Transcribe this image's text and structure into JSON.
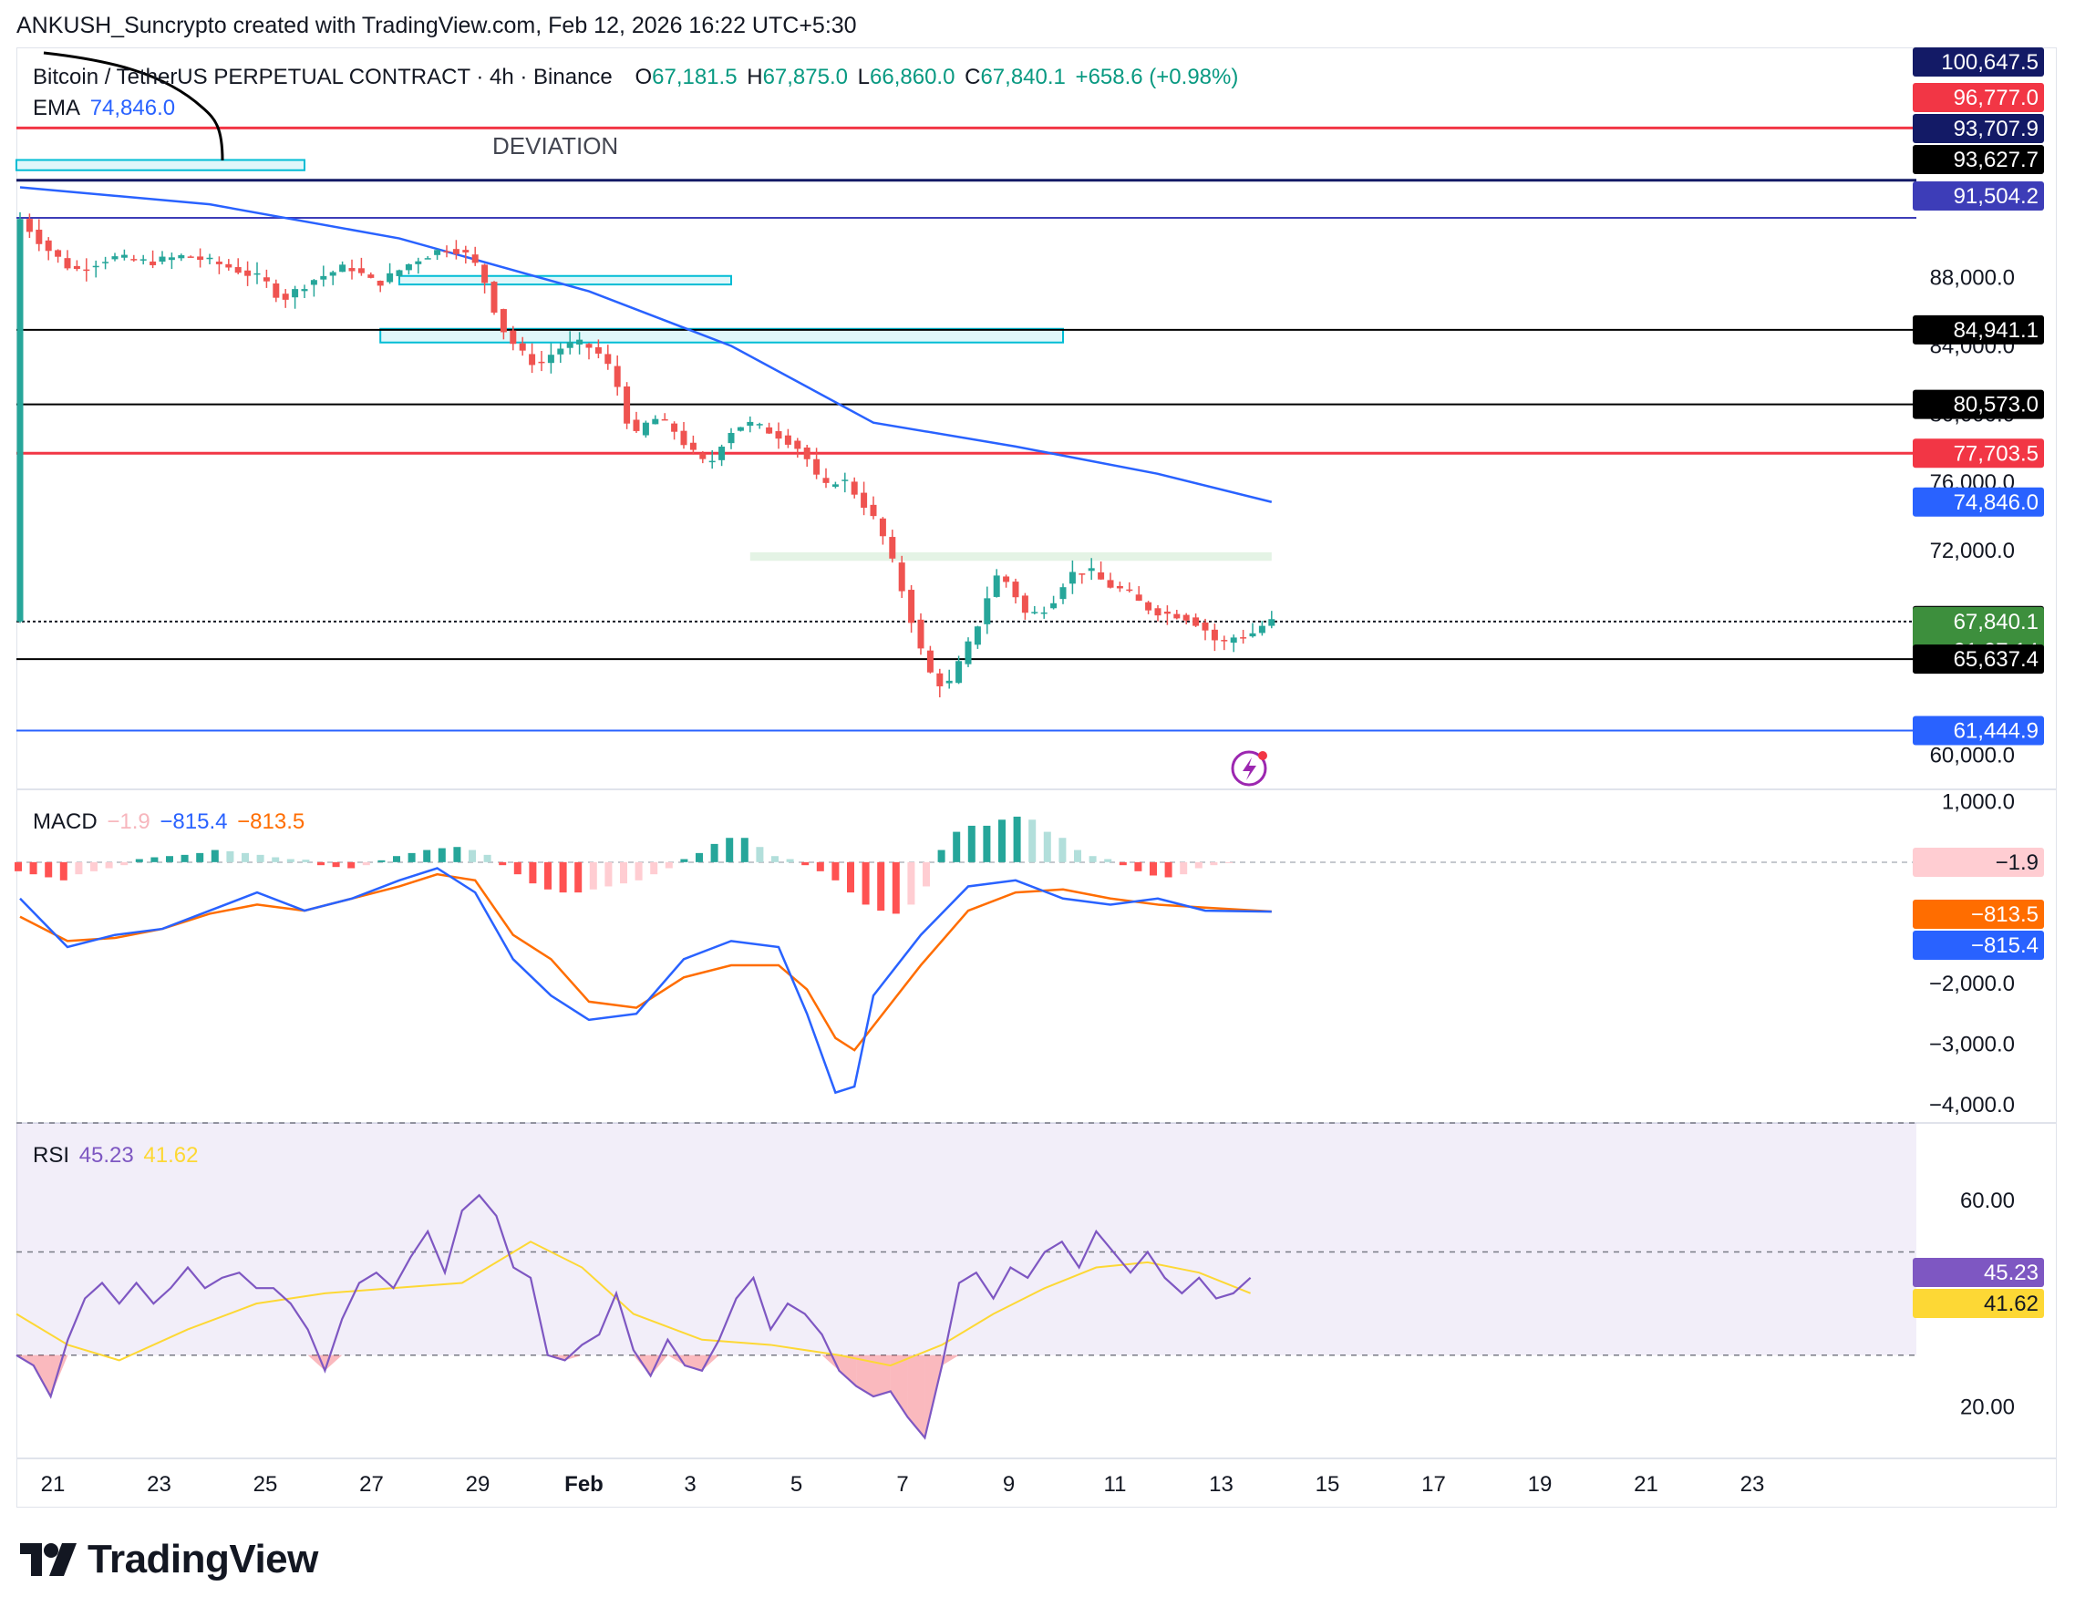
{
  "credit": "ANKUSH_Suncrypto created with TradingView.com, Feb 12, 2026 16:22 UTC+5:30",
  "symbol": {
    "name": "Bitcoin / TetherUS PERPETUAL CONTRACT · 4h · Binance",
    "o_label": "O",
    "o": "67,181.5",
    "h_label": "H",
    "h": "67,875.0",
    "l_label": "L",
    "l": "66,860.0",
    "c_label": "C",
    "c": "67,840.1",
    "change": "+658.6 (+0.98%)"
  },
  "ema": {
    "label": "EMA",
    "value": "74,846.0"
  },
  "annotation": "DEVIATION",
  "macd_legend": {
    "label": "MACD",
    "hist": "−1.9",
    "macd": "−815.4",
    "signal": "−813.5"
  },
  "rsi_legend": {
    "label": "RSI",
    "rsi": "45.23",
    "ma": "41.62"
  },
  "brand": "TradingView",
  "colors": {
    "up": "#26a69a",
    "down": "#ef5350",
    "ema": "#2962ff",
    "red_line": "#f23645",
    "navy": "#131a66",
    "purple": "#5b3bd1",
    "macd": "#2962ff",
    "signal": "#ff6d00",
    "rsi": "#7e57c2",
    "rsi_ma": "#fdd835",
    "zone": "#00bcd4"
  },
  "chart_data": [
    {
      "type": "candlestick",
      "title": "Bitcoin / TetherUS PERPETUAL CONTRACT · 4h · Binance",
      "ylim": [
        58000,
        101500
      ],
      "y_ticks": [
        "88,000.0",
        "84,000.0",
        "80,000.0",
        "76,000.0",
        "72,000.0",
        "60,000.0"
      ],
      "y_tick_values": [
        88000,
        84000,
        80000,
        76000,
        72000,
        60000
      ],
      "x_labels": [
        "21",
        "23",
        "25",
        "27",
        "29",
        "Feb",
        "3",
        "5",
        "7",
        "9",
        "11",
        "13",
        "15",
        "17",
        "19",
        "21",
        "23"
      ],
      "price_path": [
        [
          0,
          91700
        ],
        [
          3,
          89800
        ],
        [
          6,
          88400
        ],
        [
          10,
          89200
        ],
        [
          14,
          88900
        ],
        [
          18,
          89300
        ],
        [
          22,
          88700
        ],
        [
          26,
          87900
        ],
        [
          28,
          86700
        ],
        [
          31,
          87800
        ],
        [
          35,
          88700
        ],
        [
          38,
          87600
        ],
        [
          42,
          89000
        ],
        [
          45,
          89700
        ],
        [
          47,
          89600
        ],
        [
          49,
          88400
        ],
        [
          51,
          85200
        ],
        [
          53,
          83700
        ],
        [
          55,
          82800
        ],
        [
          57,
          83800
        ],
        [
          59,
          84200
        ],
        [
          61,
          83800
        ],
        [
          63,
          82400
        ],
        [
          65,
          78500
        ],
        [
          67,
          79800
        ],
        [
          69,
          79300
        ],
        [
          71,
          77900
        ],
        [
          73,
          76900
        ],
        [
          75,
          78900
        ],
        [
          77,
          79500
        ],
        [
          79,
          79100
        ],
        [
          81,
          78600
        ],
        [
          83,
          77800
        ],
        [
          85,
          75600
        ],
        [
          87,
          76300
        ],
        [
          89,
          75000
        ],
        [
          91,
          73400
        ],
        [
          93,
          70400
        ],
        [
          95,
          66900
        ],
        [
          96,
          65000
        ],
        [
          97,
          64500
        ],
        [
          98,
          63800
        ],
        [
          100,
          66000
        ],
        [
          102,
          68400
        ],
        [
          103,
          70600
        ],
        [
          105,
          70000
        ],
        [
          106,
          68400
        ],
        [
          107,
          68200
        ],
        [
          109,
          68800
        ],
        [
          111,
          70600
        ],
        [
          113,
          70900
        ],
        [
          115,
          70000
        ],
        [
          117,
          69600
        ],
        [
          119,
          68700
        ],
        [
          121,
          68300
        ],
        [
          123,
          68200
        ],
        [
          125,
          67600
        ],
        [
          127,
          66400
        ],
        [
          128,
          66900
        ],
        [
          130,
          67000
        ],
        [
          132,
          67840
        ]
      ],
      "ema": {
        "label": "EMA",
        "value": 74846,
        "path": [
          [
            0,
            93300
          ],
          [
            20,
            92300
          ],
          [
            40,
            90300
          ],
          [
            60,
            87200
          ],
          [
            75,
            84000
          ],
          [
            90,
            79500
          ],
          [
            105,
            78100
          ],
          [
            120,
            76500
          ],
          [
            132,
            74846
          ]
        ]
      },
      "levels": [
        {
          "name": "level-100647",
          "value": 100647.5,
          "label": "100,647.5",
          "line": false,
          "badge": "#131a66",
          "fg": "#ffffff"
        },
        {
          "name": "level-96777",
          "value": 96777.0,
          "label": "96,777.0",
          "line": true,
          "color": "#f23645",
          "badge": "#f23645",
          "fg": "#ffffff"
        },
        {
          "name": "level-93707",
          "value": 93707.9,
          "label": "93,707.9",
          "line": true,
          "color": "#131a66",
          "badge": "#131a66",
          "fg": "#ffffff"
        },
        {
          "name": "level-93627",
          "value": 93627.7,
          "label": "93,627.7",
          "line": false,
          "badge": "#000000",
          "fg": "#ffffff"
        },
        {
          "name": "level-91504",
          "value": 91504.2,
          "label": "91,504.2",
          "line": true,
          "color": "#3d3db8",
          "badge": "#3d3db8",
          "fg": "#ffffff"
        },
        {
          "name": "level-84941",
          "value": 84941.1,
          "label": "84,941.1",
          "line": true,
          "color": "#000000",
          "badge": "#000000",
          "fg": "#ffffff"
        },
        {
          "name": "level-80573",
          "value": 80573.0,
          "label": "80,573.0",
          "line": true,
          "color": "#000000",
          "badge": "#000000",
          "fg": "#ffffff"
        },
        {
          "name": "level-77703",
          "value": 77703.5,
          "label": "77,703.5",
          "line": true,
          "color": "#f23645",
          "badge": "#f23645",
          "fg": "#ffffff"
        },
        {
          "name": "level-74846",
          "value": 74846.0,
          "label": "74,846.0",
          "line": false,
          "badge": "#2962ff",
          "fg": "#ffffff"
        },
        {
          "name": "level-67897",
          "value": 67897.6,
          "label": "67,897.6",
          "line": false,
          "badge": "#000000",
          "fg": "#ffffff"
        },
        {
          "name": "level-67840",
          "value": 67840.1,
          "label": "67,840.1",
          "line": true,
          "dashed": true,
          "color": "#131722",
          "badge": "#3d8f3d",
          "fg": "#ffffff",
          "sub": "01:07:14"
        },
        {
          "name": "level-65637",
          "value": 65637.4,
          "label": "65,637.4",
          "line": true,
          "color": "#000000",
          "badge": "#000000",
          "fg": "#ffffff"
        },
        {
          "name": "level-61444",
          "value": 61444.9,
          "label": "61,444.9",
          "line": true,
          "color": "#2962ff",
          "badge": "#2962ff",
          "fg": "#ffffff"
        }
      ],
      "zones": [
        {
          "name": "zone-top",
          "x0": -5,
          "x1": 30,
          "y0": 94300,
          "y1": 94900,
          "color": "#00bcd4"
        },
        {
          "name": "zone-mid",
          "x0": 40,
          "x1": 75,
          "y0": 87600,
          "y1": 88100,
          "color": "#00bcd4"
        },
        {
          "name": "zone-wide",
          "x0": 38,
          "x1": 110,
          "y0": 84200,
          "y1": 85000,
          "color": "#00bcd4"
        },
        {
          "name": "zone-green",
          "x0": 77,
          "x1": 132,
          "y0": 71400,
          "y1": 71900,
          "color": "#4caf50"
        }
      ]
    },
    {
      "type": "macd",
      "ylim": [
        -4300,
        1200
      ],
      "y_ticks": [
        "1,000.0",
        "−2,000.0",
        "−3,000.0",
        "−4,000.0"
      ],
      "y_tick_values": [
        1000,
        -2000,
        -3000,
        -4000
      ],
      "macd_path": [
        [
          0,
          -600
        ],
        [
          5,
          -1400
        ],
        [
          10,
          -1200
        ],
        [
          15,
          -1100
        ],
        [
          20,
          -800
        ],
        [
          25,
          -500
        ],
        [
          30,
          -800
        ],
        [
          35,
          -600
        ],
        [
          40,
          -300
        ],
        [
          44,
          -100
        ],
        [
          48,
          -500
        ],
        [
          52,
          -1600
        ],
        [
          56,
          -2200
        ],
        [
          60,
          -2600
        ],
        [
          65,
          -2500
        ],
        [
          70,
          -1600
        ],
        [
          75,
          -1300
        ],
        [
          80,
          -1400
        ],
        [
          83,
          -2500
        ],
        [
          86,
          -3800
        ],
        [
          88,
          -3700
        ],
        [
          90,
          -2200
        ],
        [
          95,
          -1200
        ],
        [
          100,
          -400
        ],
        [
          105,
          -300
        ],
        [
          110,
          -600
        ],
        [
          115,
          -700
        ],
        [
          120,
          -600
        ],
        [
          125,
          -800
        ],
        [
          132,
          -815
        ]
      ],
      "signal_path": [
        [
          0,
          -900
        ],
        [
          5,
          -1300
        ],
        [
          10,
          -1250
        ],
        [
          15,
          -1100
        ],
        [
          20,
          -850
        ],
        [
          25,
          -700
        ],
        [
          30,
          -800
        ],
        [
          35,
          -600
        ],
        [
          40,
          -400
        ],
        [
          44,
          -200
        ],
        [
          48,
          -300
        ],
        [
          52,
          -1200
        ],
        [
          56,
          -1600
        ],
        [
          60,
          -2300
        ],
        [
          65,
          -2400
        ],
        [
          70,
          -1900
        ],
        [
          75,
          -1700
        ],
        [
          80,
          -1700
        ],
        [
          83,
          -2100
        ],
        [
          86,
          -2900
        ],
        [
          88,
          -3100
        ],
        [
          90,
          -2700
        ],
        [
          95,
          -1700
        ],
        [
          100,
          -800
        ],
        [
          105,
          -500
        ],
        [
          110,
          -450
        ],
        [
          115,
          -600
        ],
        [
          120,
          -700
        ],
        [
          125,
          -750
        ],
        [
          132,
          -813
        ]
      ],
      "histogram": [
        -150,
        -200,
        -250,
        -300,
        -200,
        -150,
        -100,
        -50,
        50,
        80,
        100,
        120,
        150,
        200,
        180,
        150,
        120,
        80,
        50,
        40,
        -50,
        -80,
        -100,
        -50,
        30,
        100,
        150,
        200,
        230,
        250,
        200,
        120,
        -50,
        -200,
        -350,
        -450,
        -500,
        -500,
        -450,
        -400,
        -350,
        -300,
        -200,
        -100,
        50,
        150,
        300,
        400,
        400,
        250,
        100,
        50,
        -50,
        -150,
        -300,
        -500,
        -700,
        -800,
        -850,
        -700,
        -400,
        200,
        500,
        600,
        600,
        700,
        750,
        700,
        500,
        400,
        200,
        100,
        50,
        -50,
        -150,
        -220,
        -250,
        -200,
        -100,
        -50,
        -2
      ],
      "zero_line": -1.9
    },
    {
      "type": "rsi",
      "ylim": [
        10,
        75
      ],
      "y_ticks": [
        "60.00",
        "20.00"
      ],
      "y_tick_values": [
        60,
        20
      ],
      "band": [
        30,
        70
      ],
      "midline": 50,
      "rsi_path": [
        [
          0,
          30
        ],
        [
          1,
          28
        ],
        [
          2,
          22
        ],
        [
          3,
          33
        ],
        [
          4,
          41
        ],
        [
          5,
          44
        ],
        [
          6,
          40
        ],
        [
          7,
          44
        ],
        [
          8,
          40
        ],
        [
          9,
          43
        ],
        [
          10,
          47
        ],
        [
          11,
          43
        ],
        [
          12,
          45
        ],
        [
          13,
          46
        ],
        [
          14,
          43
        ],
        [
          15,
          43
        ],
        [
          16,
          40
        ],
        [
          17,
          35
        ],
        [
          18,
          27
        ],
        [
          19,
          37
        ],
        [
          20,
          44
        ],
        [
          21,
          46
        ],
        [
          22,
          43
        ],
        [
          23,
          49
        ],
        [
          24,
          54
        ],
        [
          25,
          46
        ],
        [
          26,
          58
        ],
        [
          27,
          61
        ],
        [
          28,
          57
        ],
        [
          29,
          47
        ],
        [
          30,
          45
        ],
        [
          31,
          30
        ],
        [
          32,
          29
        ],
        [
          33,
          32
        ],
        [
          34,
          34
        ],
        [
          35,
          42
        ],
        [
          36,
          31
        ],
        [
          37,
          26
        ],
        [
          38,
          33
        ],
        [
          39,
          28
        ],
        [
          40,
          27
        ],
        [
          41,
          33
        ],
        [
          42,
          41
        ],
        [
          43,
          45
        ],
        [
          44,
          35
        ],
        [
          45,
          40
        ],
        [
          46,
          38
        ],
        [
          47,
          34
        ],
        [
          48,
          27
        ],
        [
          49,
          24
        ],
        [
          50,
          22
        ],
        [
          51,
          23
        ],
        [
          52,
          18
        ],
        [
          53,
          14
        ],
        [
          54,
          28
        ],
        [
          55,
          44
        ],
        [
          56,
          46
        ],
        [
          57,
          41
        ],
        [
          58,
          47
        ],
        [
          59,
          45
        ],
        [
          60,
          50
        ],
        [
          61,
          52
        ],
        [
          62,
          47
        ],
        [
          63,
          54
        ],
        [
          64,
          50
        ],
        [
          65,
          46
        ],
        [
          66,
          50
        ],
        [
          67,
          45
        ],
        [
          68,
          42
        ],
        [
          69,
          45
        ],
        [
          70,
          41
        ],
        [
          71,
          42
        ],
        [
          72,
          45
        ]
      ],
      "ma_path": [
        [
          0,
          38
        ],
        [
          3,
          32
        ],
        [
          6,
          29
        ],
        [
          10,
          35
        ],
        [
          14,
          40
        ],
        [
          18,
          42
        ],
        [
          22,
          43
        ],
        [
          26,
          44
        ],
        [
          30,
          52
        ],
        [
          33,
          47
        ],
        [
          36,
          38
        ],
        [
          40,
          33
        ],
        [
          44,
          32
        ],
        [
          48,
          30
        ],
        [
          51,
          28
        ],
        [
          54,
          32
        ],
        [
          57,
          38
        ],
        [
          60,
          43
        ],
        [
          63,
          47
        ],
        [
          66,
          48
        ],
        [
          69,
          46
        ],
        [
          72,
          42
        ]
      ]
    }
  ]
}
